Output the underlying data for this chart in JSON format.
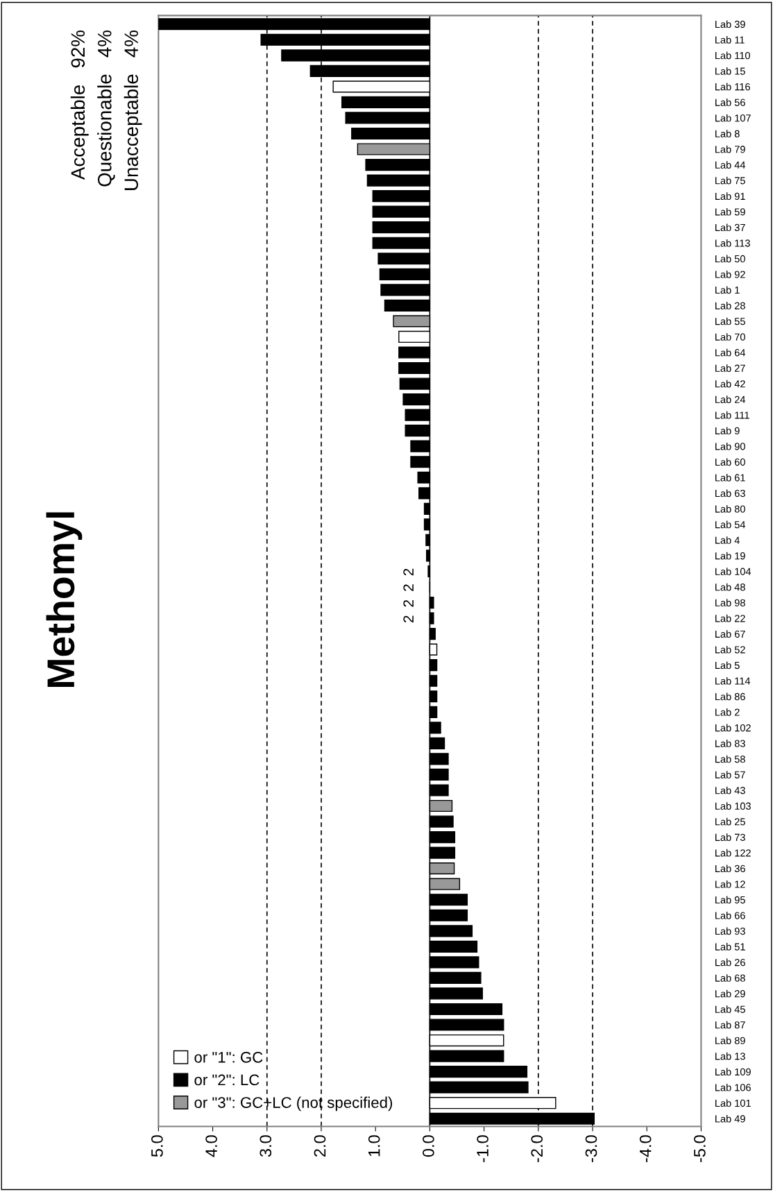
{
  "chart_data": {
    "type": "bar",
    "orientation": "horizontal",
    "title": "Methomyl",
    "categories": [
      "Lab 39",
      "Lab 11",
      "Lab 110",
      "Lab 15",
      "Lab 116",
      "Lab 56",
      "Lab 107",
      "Lab 8",
      "Lab 79",
      "Lab 44",
      "Lab 75",
      "Lab 91",
      "Lab 59",
      "Lab 37",
      "Lab 113",
      "Lab 50",
      "Lab 92",
      "Lab 1",
      "Lab 28",
      "Lab 55",
      "Lab 70",
      "Lab 64",
      "Lab 27",
      "Lab 42",
      "Lab 24",
      "Lab 111",
      "Lab 9",
      "Lab 90",
      "Lab 60",
      "Lab 61",
      "Lab 63",
      "Lab 80",
      "Lab 54",
      "Lab 4",
      "Lab 19",
      "Lab 104",
      "Lab 48",
      "Lab 98",
      "Lab 22",
      "Lab 67",
      "Lab 52",
      "Lab 5",
      "Lab 114",
      "Lab 86",
      "Lab 2",
      "Lab 102",
      "Lab 83",
      "Lab 58",
      "Lab 57",
      "Lab 43",
      "Lab 103",
      "Lab 25",
      "Lab 73",
      "Lab 122",
      "Lab 36",
      "Lab 12",
      "Lab 95",
      "Lab 66",
      "Lab 93",
      "Lab 51",
      "Lab 26",
      "Lab 68",
      "Lab 29",
      "Lab 45",
      "Lab 87",
      "Lab 89",
      "Lab 13",
      "Lab 109",
      "Lab 106",
      "Lab 101",
      "Lab 49"
    ],
    "series": [
      {
        "name": "or \"1\": GC",
        "color": "#ffffff",
        "values": [
          null,
          null,
          null,
          null,
          1.78,
          null,
          null,
          null,
          null,
          null,
          null,
          null,
          null,
          null,
          null,
          null,
          null,
          null,
          null,
          null,
          0.57,
          null,
          null,
          null,
          null,
          null,
          null,
          null,
          null,
          null,
          null,
          null,
          null,
          null,
          null,
          null,
          null,
          null,
          null,
          null,
          -0.13,
          null,
          null,
          null,
          null,
          null,
          null,
          null,
          null,
          null,
          null,
          null,
          null,
          null,
          null,
          null,
          null,
          null,
          null,
          null,
          null,
          null,
          null,
          null,
          null,
          -1.36,
          null,
          null,
          null,
          -2.32,
          null
        ]
      },
      {
        "name": "or \"2\": LC",
        "color": "#000000",
        "values": [
          5.0,
          3.11,
          2.73,
          2.2,
          null,
          1.62,
          1.55,
          1.44,
          null,
          1.18,
          1.15,
          1.05,
          1.05,
          1.05,
          1.05,
          0.95,
          0.92,
          0.9,
          0.83,
          null,
          null,
          0.57,
          0.57,
          0.55,
          0.49,
          0.45,
          0.45,
          0.35,
          0.35,
          0.22,
          0.2,
          0.1,
          0.1,
          0.07,
          0.06,
          0.03,
          0.0,
          -0.07,
          -0.07,
          -0.1,
          null,
          -0.13,
          -0.13,
          -0.13,
          -0.13,
          -0.2,
          -0.27,
          -0.34,
          -0.34,
          -0.34,
          null,
          -0.43,
          -0.46,
          -0.46,
          null,
          null,
          -0.69,
          -0.69,
          -0.78,
          -0.87,
          -0.9,
          -0.94,
          -0.97,
          -1.33,
          -1.36,
          null,
          -1.36,
          -1.79,
          -1.81,
          null,
          -3.03
        ]
      },
      {
        "name": "or \"3\": GC+LC (not specified)",
        "color": "#999999",
        "values": [
          null,
          null,
          null,
          null,
          null,
          null,
          null,
          null,
          1.33,
          null,
          null,
          null,
          null,
          null,
          null,
          null,
          null,
          null,
          null,
          0.67,
          null,
          null,
          null,
          null,
          null,
          null,
          null,
          null,
          null,
          null,
          null,
          null,
          null,
          null,
          null,
          null,
          null,
          null,
          null,
          null,
          null,
          null,
          null,
          null,
          null,
          null,
          null,
          null,
          null,
          null,
          -0.41,
          null,
          null,
          null,
          -0.45,
          -0.55,
          null,
          null,
          null,
          null,
          null,
          null,
          null,
          null,
          null,
          null,
          null,
          null,
          null,
          null,
          null
        ]
      }
    ],
    "xlim": [
      5.0,
      -5.0
    ],
    "xticks": [
      {
        "value": 5,
        "label": "5.0"
      },
      {
        "value": 4,
        "label": "4.0"
      },
      {
        "value": 3,
        "label": "3.0"
      },
      {
        "value": 2,
        "label": "2.0"
      },
      {
        "value": 1,
        "label": "1.0"
      },
      {
        "value": 0,
        "label": "0.0"
      },
      {
        "value": -1,
        "label": "-1.0"
      },
      {
        "value": -2,
        "label": "-2.0"
      },
      {
        "value": -3,
        "label": "-3.0"
      },
      {
        "value": -4,
        "label": "-4.0"
      },
      {
        "value": -5,
        "label": "-5.0"
      }
    ],
    "ref_lines": [
      {
        "axis": "x",
        "value": 3,
        "label": null,
        "line_style": "dashed",
        "color": "#000000"
      },
      {
        "axis": "x",
        "value": 2,
        "label": null,
        "line_style": "dashed",
        "color": "#000000"
      },
      {
        "axis": "x",
        "value": -2,
        "label": null,
        "line_style": "dashed",
        "color": "#000000"
      },
      {
        "axis": "x",
        "value": -3,
        "label": null,
        "line_style": "dashed",
        "color": "#000000"
      },
      {
        "axis": "x",
        "value": 0,
        "label": null,
        "line_style": "solid",
        "color": "#000000"
      }
    ],
    "annotations": [
      "Acceptable   92%",
      "Questionable   4%",
      "Unacceptable   4%",
      "2",
      "2",
      "2",
      "2"
    ],
    "legend": "bottom left",
    "grid": false
  }
}
